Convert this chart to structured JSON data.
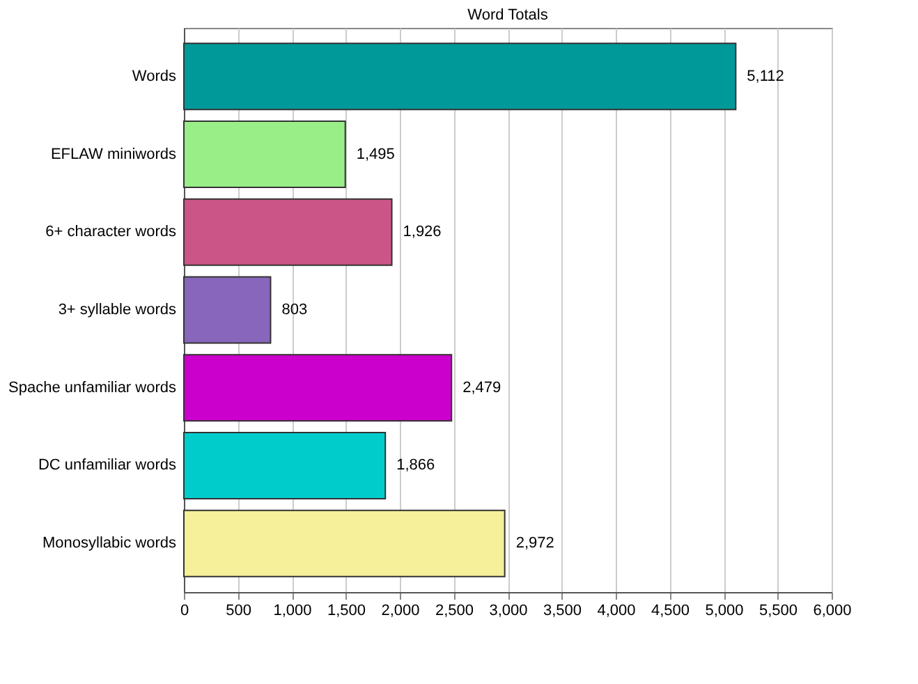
{
  "chart_data": {
    "type": "bar",
    "orientation": "horizontal",
    "title": "Word Totals",
    "categories": [
      "Words",
      "EFLAW miniwords",
      "6+ character words",
      "3+ syllable words",
      "Spache unfamiliar words",
      "DC unfamiliar words",
      "Monosyllabic words"
    ],
    "values": [
      5112,
      1495,
      1926,
      803,
      2479,
      1866,
      2972
    ],
    "colors": [
      "#009999",
      "#99ee88",
      "#cc5588",
      "#8866bb",
      "#cc00cc",
      "#00cccc",
      "#f5f099"
    ],
    "value_labels": [
      "5,112",
      "1,495",
      "1,926",
      "803",
      "2,479",
      "1,866",
      "2,972"
    ],
    "xlim": [
      0,
      6000
    ],
    "xticks": [
      0,
      500,
      {
        "value": 1000,
        "label": "1,000"
      },
      {
        "value": 1500,
        "label": "1,500"
      },
      {
        "value": 2000,
        "label": "2,000"
      },
      {
        "value": 2500,
        "label": "2,500"
      },
      {
        "value": 3000,
        "label": "3,000"
      },
      {
        "value": 3500,
        "label": "3,500"
      },
      {
        "value": 4000,
        "label": "4,000"
      },
      {
        "value": 4500,
        "label": "4,500"
      },
      {
        "value": 5000,
        "label": "5,000"
      },
      {
        "value": 5500,
        "label": "5,500"
      },
      {
        "value": 6000,
        "label": "6,000"
      }
    ],
    "grid": "x"
  }
}
